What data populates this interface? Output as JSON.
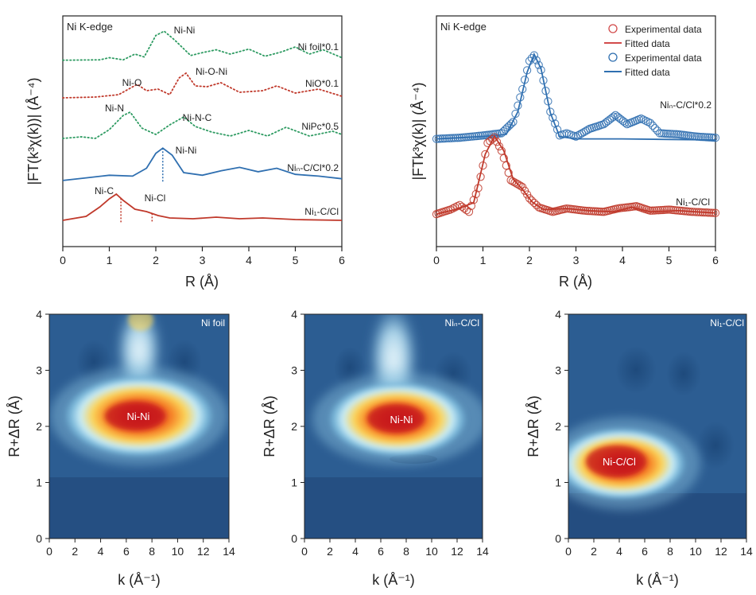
{
  "chart_data": [
    {
      "type": "line",
      "panel": "a",
      "title": "Ni K-edge",
      "xlabel": "R (Å)",
      "ylabel": "|FT(k³χ(k))| (Å⁻⁴)",
      "xlim": [
        0,
        6
      ],
      "xticks": [
        0,
        1,
        2,
        3,
        4,
        5,
        6
      ],
      "series": [
        {
          "name": "Ni foil*0.1",
          "style": "dotted",
          "color": "#2e9b62",
          "points": [
            [
              0,
              0.15
            ],
            [
              0.8,
              0.2
            ],
            [
              1.0,
              0.5
            ],
            [
              1.3,
              0.2
            ],
            [
              1.55,
              1.0
            ],
            [
              1.75,
              0.6
            ],
            [
              2.0,
              3.6
            ],
            [
              2.18,
              4.2
            ],
            [
              2.4,
              3.0
            ],
            [
              2.75,
              0.8
            ],
            [
              3.0,
              1.2
            ],
            [
              3.3,
              1.6
            ],
            [
              3.6,
              1.0
            ],
            [
              4.0,
              1.7
            ],
            [
              4.35,
              0.7
            ],
            [
              4.7,
              1.3
            ],
            [
              5.0,
              2.0
            ],
            [
              5.3,
              1.0
            ],
            [
              5.6,
              1.6
            ],
            [
              6.0,
              0.5
            ]
          ]
        },
        {
          "name": "NiO*0.1",
          "style": "dotted",
          "color": "#c0392b",
          "points": [
            [
              0,
              0.1
            ],
            [
              0.7,
              0.2
            ],
            [
              1.2,
              0.5
            ],
            [
              1.6,
              1.8
            ],
            [
              1.8,
              1.0
            ],
            [
              2.05,
              1.2
            ],
            [
              2.3,
              0.5
            ],
            [
              2.5,
              2.6
            ],
            [
              2.65,
              3.2
            ],
            [
              2.85,
              1.6
            ],
            [
              3.1,
              1.5
            ],
            [
              3.4,
              2.0
            ],
            [
              3.8,
              0.8
            ],
            [
              4.3,
              1.0
            ],
            [
              4.6,
              1.6
            ],
            [
              5.0,
              0.7
            ],
            [
              5.5,
              1.2
            ],
            [
              6.0,
              0.3
            ]
          ]
        },
        {
          "name": "NiPc*0.5",
          "style": "dotted",
          "color": "#2e9b62",
          "points": [
            [
              0,
              0.1
            ],
            [
              0.4,
              0.3
            ],
            [
              0.7,
              0.1
            ],
            [
              1.0,
              1.2
            ],
            [
              1.3,
              3.0
            ],
            [
              1.45,
              3.4
            ],
            [
              1.7,
              1.4
            ],
            [
              2.0,
              0.6
            ],
            [
              2.3,
              1.8
            ],
            [
              2.6,
              2.8
            ],
            [
              2.85,
              1.6
            ],
            [
              3.2,
              0.9
            ],
            [
              3.6,
              0.4
            ],
            [
              4.0,
              1.1
            ],
            [
              4.4,
              0.4
            ],
            [
              4.8,
              1.5
            ],
            [
              5.3,
              0.4
            ],
            [
              5.8,
              1.0
            ],
            [
              6.0,
              0.6
            ]
          ]
        },
        {
          "name": "Niₙ-C/Cl*0.2",
          "style": "solid",
          "color": "#2f6fb0",
          "points": [
            [
              0,
              0.1
            ],
            [
              0.5,
              0.4
            ],
            [
              1.0,
              0.7
            ],
            [
              1.5,
              0.6
            ],
            [
              1.8,
              1.5
            ],
            [
              2.0,
              3.2
            ],
            [
              2.15,
              3.8
            ],
            [
              2.35,
              3.0
            ],
            [
              2.6,
              1.0
            ],
            [
              3.0,
              0.7
            ],
            [
              3.4,
              1.2
            ],
            [
              3.8,
              1.6
            ],
            [
              4.2,
              1.1
            ],
            [
              4.6,
              1.5
            ],
            [
              5.0,
              0.8
            ],
            [
              5.5,
              0.6
            ],
            [
              6.0,
              0.3
            ]
          ]
        },
        {
          "name": "Ni₁-C/Cl",
          "style": "solid",
          "color": "#c0392b",
          "points": [
            [
              0,
              0.1
            ],
            [
              0.5,
              0.6
            ],
            [
              0.8,
              1.8
            ],
            [
              1.0,
              2.8
            ],
            [
              1.15,
              3.4
            ],
            [
              1.3,
              2.6
            ],
            [
              1.55,
              1.5
            ],
            [
              1.8,
              1.2
            ],
            [
              2.05,
              0.7
            ],
            [
              2.3,
              0.4
            ],
            [
              2.8,
              0.3
            ],
            [
              3.3,
              0.5
            ],
            [
              3.8,
              0.3
            ],
            [
              4.3,
              0.4
            ],
            [
              5.0,
              0.2
            ],
            [
              6.0,
              0.1
            ]
          ]
        }
      ],
      "annotations": [
        {
          "text": "Ni-Ni",
          "x": 2.15
        },
        {
          "text": "Ni-O",
          "x": 1.45
        },
        {
          "text": "Ni-O-Ni",
          "x": 2.75
        },
        {
          "text": "Ni-N",
          "x": 1.1
        },
        {
          "text": "Ni-N-C",
          "x": 2.55
        },
        {
          "text": "Ni-Ni",
          "x": 2.2
        },
        {
          "text": "Ni-C",
          "x": 0.85
        },
        {
          "text": "Ni-Cl",
          "x": 1.95
        }
      ],
      "markers": [
        {
          "series": 3,
          "x": 2.15
        },
        {
          "series": 4,
          "x": 1.25
        },
        {
          "series": 4,
          "x": 1.92
        }
      ]
    },
    {
      "type": "scatter+line",
      "panel": "b",
      "title": "Ni K-edge",
      "xlabel": "R (Å)",
      "ylabel": "|FTk³χ(k)| (Å⁻⁴)",
      "xlim": [
        0,
        6
      ],
      "xticks": [
        0,
        1,
        2,
        3,
        4,
        5,
        6
      ],
      "legend": [
        {
          "label": "Experimental data",
          "kind": "circle",
          "color": "#d24b4b"
        },
        {
          "label": "Fitted data",
          "kind": "line",
          "color": "#d24b4b"
        },
        {
          "label": "Experimental data",
          "kind": "circle",
          "color": "#2f6fb0"
        },
        {
          "label": "Fitted data",
          "kind": "line",
          "color": "#2f6fb0"
        }
      ],
      "series": [
        {
          "name": "Niₙ-C/Cl*0.2",
          "color": "#2f6fb0",
          "experimental": [
            [
              0,
              0.1
            ],
            [
              0.5,
              0.2
            ],
            [
              1.0,
              0.4
            ],
            [
              1.4,
              0.6
            ],
            [
              1.65,
              1.6
            ],
            [
              1.85,
              4.5
            ],
            [
              2.0,
              7.0
            ],
            [
              2.1,
              7.5
            ],
            [
              2.25,
              6.2
            ],
            [
              2.45,
              2.5
            ],
            [
              2.65,
              0.4
            ],
            [
              2.8,
              0.6
            ],
            [
              3.0,
              0.3
            ],
            [
              3.3,
              1.0
            ],
            [
              3.6,
              1.4
            ],
            [
              3.85,
              2.2
            ],
            [
              4.1,
              1.4
            ],
            [
              4.4,
              1.9
            ],
            [
              4.6,
              1.5
            ],
            [
              4.8,
              0.6
            ],
            [
              5.2,
              0.5
            ],
            [
              5.6,
              0.3
            ],
            [
              6.0,
              0.2
            ]
          ],
          "fitted": [
            [
              0,
              0.1
            ],
            [
              1.0,
              0.3
            ],
            [
              1.5,
              0.5
            ],
            [
              1.75,
              2.5
            ],
            [
              1.95,
              6.0
            ],
            [
              2.1,
              7.6
            ],
            [
              2.25,
              6.3
            ],
            [
              2.45,
              2.4
            ],
            [
              2.65,
              0.3
            ],
            [
              3.0,
              0.1
            ],
            [
              4.0,
              0.1
            ],
            [
              5.0,
              0.05
            ],
            [
              6.0,
              0.0
            ]
          ]
        },
        {
          "name": "Ni₁-C/Cl",
          "color": "#c0392b",
          "experimental": [
            [
              0,
              0.2
            ],
            [
              0.3,
              0.6
            ],
            [
              0.5,
              1.0
            ],
            [
              0.7,
              0.4
            ],
            [
              0.9,
              2.5
            ],
            [
              1.1,
              6.5
            ],
            [
              1.25,
              7.0
            ],
            [
              1.4,
              5.8
            ],
            [
              1.6,
              3.2
            ],
            [
              1.85,
              2.6
            ],
            [
              2.0,
              1.6
            ],
            [
              2.2,
              0.8
            ],
            [
              2.5,
              0.4
            ],
            [
              2.8,
              0.7
            ],
            [
              3.2,
              0.5
            ],
            [
              3.6,
              0.4
            ],
            [
              3.9,
              0.7
            ],
            [
              4.3,
              0.9
            ],
            [
              4.6,
              0.5
            ],
            [
              5.0,
              0.6
            ],
            [
              5.5,
              0.4
            ],
            [
              6.0,
              0.3
            ]
          ],
          "fitted": [
            [
              0,
              0.2
            ],
            [
              0.4,
              0.6
            ],
            [
              0.8,
              1.2
            ],
            [
              1.05,
              5.5
            ],
            [
              1.25,
              7.1
            ],
            [
              1.45,
              5.8
            ],
            [
              1.65,
              3.3
            ],
            [
              1.85,
              2.4
            ],
            [
              2.05,
              1.3
            ],
            [
              2.3,
              0.6
            ],
            [
              2.8,
              0.7
            ],
            [
              3.3,
              0.5
            ],
            [
              3.8,
              0.4
            ],
            [
              4.2,
              0.8
            ],
            [
              4.6,
              0.4
            ],
            [
              5.2,
              0.5
            ],
            [
              6.0,
              0.3
            ]
          ]
        }
      ]
    },
    {
      "type": "heatmap",
      "panel": "c",
      "title": "Ni foil",
      "peak_label": "Ni-Ni",
      "peak": {
        "k": 7.0,
        "r": 2.15
      },
      "xlabel": "k (Å⁻¹)",
      "ylabel": "R+ΔR (Å)",
      "xlim": [
        0,
        14
      ],
      "ylim": [
        0,
        4
      ],
      "xticks": [
        0,
        2,
        4,
        6,
        8,
        10,
        12,
        14
      ],
      "yticks": [
        0,
        1,
        2,
        3,
        4
      ]
    },
    {
      "type": "heatmap",
      "panel": "d",
      "title": "Niₙ-C/Cl",
      "peak_label": "Ni-Ni",
      "peak": {
        "k": 7.2,
        "r": 2.1
      },
      "xlabel": "k (Å⁻¹)",
      "ylabel": "R+ΔR (Å)",
      "xlim": [
        0,
        14
      ],
      "ylim": [
        0,
        4
      ],
      "xticks": [
        0,
        2,
        4,
        6,
        8,
        10,
        12,
        14
      ],
      "yticks": [
        0,
        1,
        2,
        3,
        4
      ]
    },
    {
      "type": "heatmap",
      "panel": "e",
      "title": "Ni₁-C/Cl",
      "peak_label": "Ni-C/Cl",
      "peak": {
        "k": 4.0,
        "r": 1.3
      },
      "xlabel": "k (Å⁻¹)",
      "ylabel": "R+ΔR (Å)",
      "xlim": [
        0,
        14
      ],
      "ylim": [
        0,
        4
      ],
      "xticks": [
        0,
        2,
        4,
        6,
        8,
        10,
        12,
        14
      ],
      "yticks": [
        0,
        1,
        2,
        3,
        4
      ]
    }
  ]
}
